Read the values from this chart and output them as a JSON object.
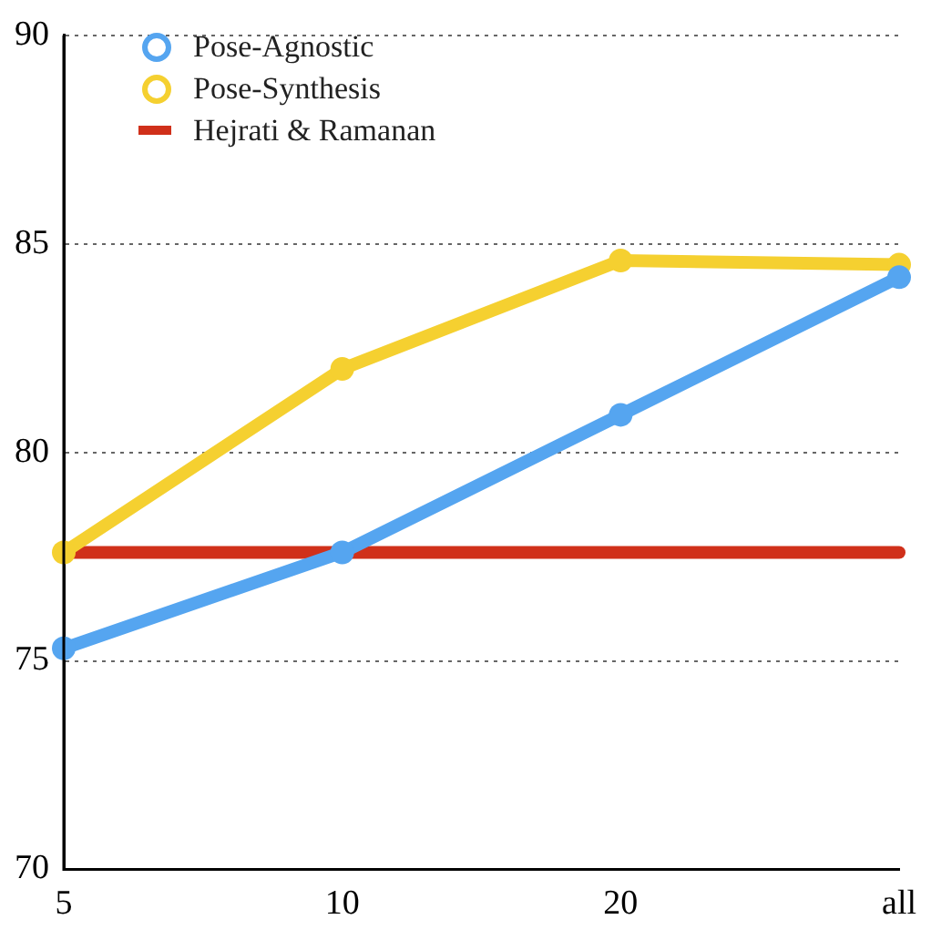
{
  "chart_data": {
    "type": "line",
    "categories": [
      "5",
      "10",
      "20",
      "all"
    ],
    "series": [
      {
        "name": "Pose-Agnostic",
        "color": "#55a5f0",
        "marker": "circle",
        "values": [
          75.3,
          77.6,
          80.9,
          84.2
        ]
      },
      {
        "name": "Pose-Synthesis",
        "color": "#f5d030",
        "marker": "circle",
        "values": [
          77.6,
          82.0,
          84.6,
          84.5
        ]
      },
      {
        "name": "Hejrati & Ramanan",
        "color": "#d0301a",
        "marker": "none",
        "values": [
          77.6,
          77.6,
          77.6,
          77.6
        ]
      }
    ],
    "ylim": [
      70,
      90
    ],
    "yticks": [
      70,
      75,
      80,
      85,
      90
    ],
    "grid": "y",
    "legend": "top left"
  }
}
